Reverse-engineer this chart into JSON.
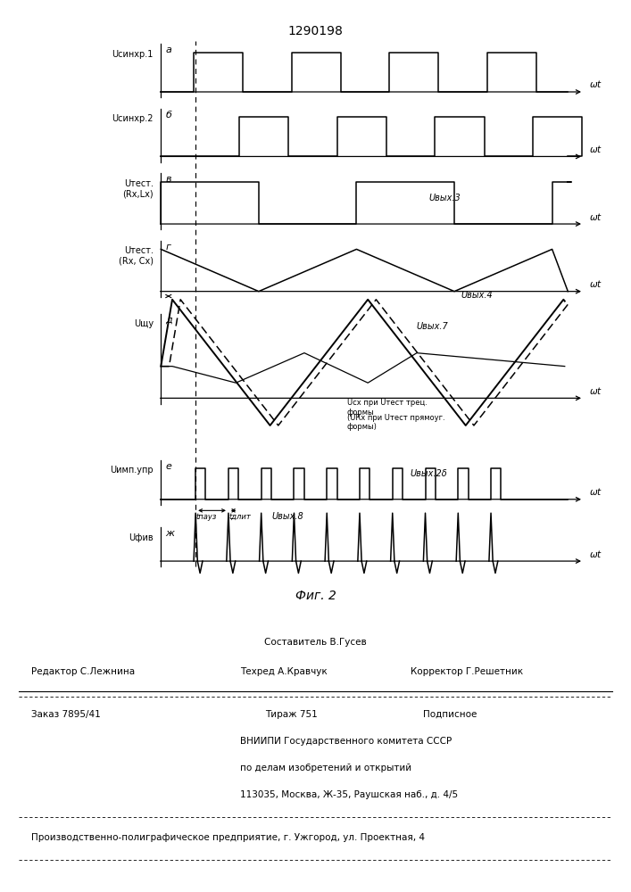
{
  "title": "1290198",
  "fig_caption": "Фиг. 2",
  "background_color": "#ffffff",
  "lw": 1.1,
  "row_labels": [
    "Uсинхр.1",
    "Uсинхр.2",
    "Uтест.\n(Rx,Lx)",
    "Uтест.\n(Rx, Cx)",
    "Uщу",
    "Uимп.упр",
    "Uфив"
  ],
  "row_letters": [
    "а",
    "б",
    "в",
    "г",
    "д",
    "е",
    "ж"
  ],
  "annot_vyx3": "Uвых.3",
  "annot_vyx4": "Uвых.4",
  "annot_vyx7": "Uвых.7",
  "annot_vyx28": "Uвых.2δ",
  "annot_vyx8": "Uвых.8",
  "annot_legend1": "Uсх при Uтест трец.\nформы",
  "annot_legend2": "(URx при Uтест прямоуг.\nформы)",
  "annot_tpaus": "tпауз",
  "annot_tdlit": "tдлит",
  "footer": {
    "sostavitel": "Составитель В.Гусев",
    "tehred": "Техред А.Кравчук",
    "korrektor": "Корректор Г.Решетник",
    "redaktor": "Редактор С.Лежнина",
    "zakaz": "Заказ 7895/41",
    "tirazh": "Тираж 751",
    "podpisnoe": "Подписное",
    "vniip1": "ВНИИПИ Государственного комитета СССР",
    "vniip2": "по делам изобретений и открытий",
    "vniip3": "113035, Москва, Ж-35, Раушская наб., д. 4/5",
    "predpr": "Производственно-полиграфическое предприятие, г. Ужгород, ул. Проектная, 4"
  }
}
